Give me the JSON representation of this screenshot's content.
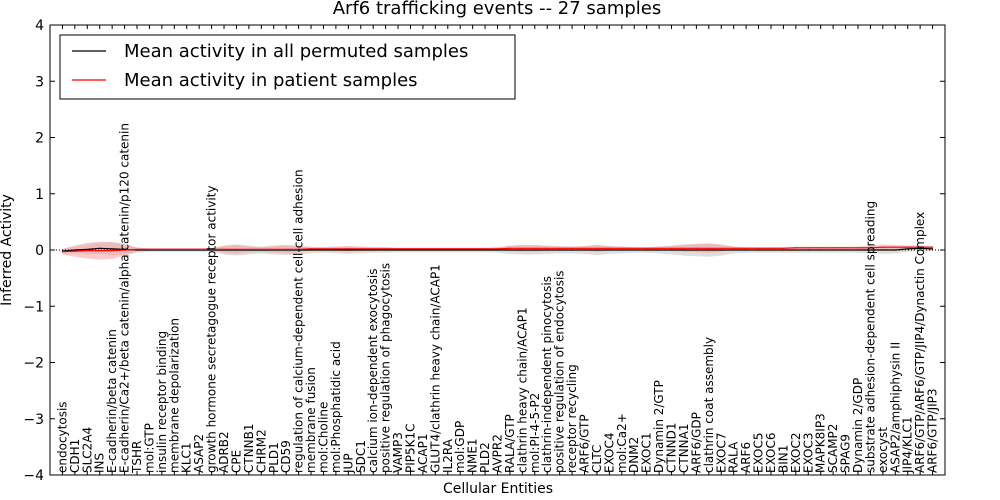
{
  "chart_data": {
    "type": "line",
    "title": "Arf6 trafficking events -- 27 samples",
    "xlabel": "Cellular Entities",
    "ylabel": "Inferred Activity",
    "ylim": [
      -4,
      4
    ],
    "yticks": [
      -4,
      -3,
      -2,
      -1,
      0,
      1,
      2,
      3,
      4
    ],
    "grid": false,
    "legend_position": "top-left",
    "categories": [
      "endocytosis",
      "CDH1",
      "SLC2A4",
      "INS",
      "E-cadherin/beta catenin",
      "E-cadherin/Ca2+/beta catenin/alpha catenin/p120 catenin",
      "TSHR",
      "mol:GTP",
      "insulin receptor binding",
      "membrane depolarization",
      "KLC1",
      "ASAP2",
      "growth hormone secretagogue receptor activity",
      "ADRB2",
      "CPE",
      "CTNNB1",
      "CHRM2",
      "PLD1",
      "CD59",
      "regulation of calcium-dependent cell-cell adhesion",
      "membrane fusion",
      "mol:Choline",
      "mol:Phosphatidic acid",
      "JUP",
      "SDC1",
      "calcium ion-dependent exocytosis",
      "positive regulation of phagocytosis",
      "VAMP3",
      "PIP5K1C",
      "ACAP1",
      "GLUT4/clathrin heavy chain/ACAP1",
      "IL2RA",
      "mol:GDP",
      "NME1",
      "PLD2",
      "AVPR2",
      "RALA/GTP",
      "clathrin heavy chain/ACAP1",
      "mol:PI-4-5-P2",
      "clathrin-independent pinocytosis",
      "positive regulation of endocytosis",
      "receptor recycling",
      "ARF6/GTP",
      "CLTC",
      "EXOC4",
      "mol:Ca2+",
      "DNM2",
      "EXOC1",
      "Dynamin 2/GTP",
      "CTNND1",
      "CTNNA1",
      "ARF6/GDP",
      "clathrin coat assembly",
      "EXOC7",
      "RALA",
      "ARF6",
      "EXOC5",
      "EXOC6",
      "BIN1",
      "EXOC2",
      "EXOC3",
      "MAPK8IP3",
      "SCAMP2",
      "SPAG9",
      "Dynamin 2/GDP",
      "substrate adhesion-dependent cell spreading",
      "exocyst",
      "ASAP2/amphiphysin II",
      "JIP4/KLC1",
      "ARF6/GTP/ARF6/GTP/JIP4/Dynactin Complex",
      "ARF6/GTP/JIP3"
    ],
    "series": [
      {
        "name": "Mean activity in all permuted samples",
        "color": "#000000",
        "band_color": "#c8c8c8",
        "values": [
          -0.02,
          0.0,
          0.01,
          0.03,
          0.02,
          0.01,
          0.0,
          0.0,
          0.0,
          0.0,
          0.0,
          0.0,
          0.0,
          0.0,
          0.0,
          0.0,
          0.0,
          0.0,
          0.0,
          0.0,
          0.0,
          0.0,
          0.0,
          0.0,
          0.0,
          0.0,
          0.0,
          0.0,
          0.0,
          0.0,
          0.0,
          0.0,
          0.0,
          0.0,
          0.0,
          0.0,
          0.0,
          0.0,
          0.0,
          0.0,
          0.0,
          0.0,
          0.0,
          0.0,
          0.0,
          0.0,
          0.0,
          0.0,
          0.0,
          0.0,
          0.0,
          0.0,
          0.0,
          0.0,
          0.0,
          0.0,
          0.0,
          0.0,
          0.0,
          0.0,
          0.0,
          0.0,
          0.0,
          0.0,
          0.0,
          0.0,
          0.0,
          0.0,
          0.02,
          0.03,
          0.02
        ],
        "band": [
          0.04,
          0.06,
          0.08,
          0.1,
          0.12,
          0.1,
          0.05,
          0.03,
          0.03,
          0.03,
          0.03,
          0.03,
          0.03,
          0.08,
          0.1,
          0.08,
          0.06,
          0.08,
          0.09,
          0.08,
          0.06,
          0.05,
          0.06,
          0.07,
          0.06,
          0.05,
          0.05,
          0.04,
          0.04,
          0.04,
          0.04,
          0.04,
          0.04,
          0.04,
          0.04,
          0.05,
          0.07,
          0.08,
          0.08,
          0.07,
          0.06,
          0.06,
          0.07,
          0.09,
          0.07,
          0.06,
          0.05,
          0.05,
          0.06,
          0.08,
          0.1,
          0.11,
          0.12,
          0.1,
          0.06,
          0.05,
          0.05,
          0.05,
          0.05,
          0.05,
          0.05,
          0.05,
          0.05,
          0.05,
          0.05,
          0.06,
          0.07,
          0.06,
          0.05,
          0.04,
          0.04
        ]
      },
      {
        "name": "Mean activity in patient samples",
        "color": "#ff0000",
        "band_color": "#f4a0a0",
        "values": [
          -0.03,
          -0.02,
          -0.01,
          -0.01,
          -0.01,
          0.0,
          0.01,
          0.01,
          0.01,
          0.01,
          0.01,
          0.01,
          0.01,
          0.01,
          0.01,
          0.01,
          0.01,
          0.01,
          0.01,
          0.01,
          0.02,
          0.02,
          0.02,
          0.02,
          0.02,
          0.02,
          0.02,
          0.02,
          0.02,
          0.02,
          0.02,
          0.02,
          0.02,
          0.02,
          0.02,
          0.02,
          0.03,
          0.03,
          0.03,
          0.03,
          0.03,
          0.03,
          0.03,
          0.03,
          0.03,
          0.03,
          0.03,
          0.03,
          0.03,
          0.03,
          0.03,
          0.03,
          0.03,
          0.03,
          0.03,
          0.03,
          0.03,
          0.03,
          0.03,
          0.04,
          0.04,
          0.04,
          0.04,
          0.04,
          0.04,
          0.04,
          0.05,
          0.05,
          0.05,
          0.05,
          0.05
        ],
        "band": [
          0.05,
          0.1,
          0.14,
          0.16,
          0.15,
          0.1,
          0.03,
          0.02,
          0.02,
          0.02,
          0.02,
          0.02,
          0.02,
          0.06,
          0.08,
          0.05,
          0.04,
          0.06,
          0.07,
          0.05,
          0.03,
          0.03,
          0.04,
          0.05,
          0.04,
          0.03,
          0.03,
          0.02,
          0.02,
          0.02,
          0.02,
          0.02,
          0.02,
          0.02,
          0.02,
          0.03,
          0.05,
          0.06,
          0.06,
          0.05,
          0.04,
          0.03,
          0.04,
          0.06,
          0.04,
          0.03,
          0.02,
          0.02,
          0.03,
          0.04,
          0.06,
          0.07,
          0.08,
          0.06,
          0.03,
          0.02,
          0.02,
          0.02,
          0.02,
          0.02,
          0.02,
          0.02,
          0.02,
          0.02,
          0.02,
          0.04,
          0.05,
          0.04,
          0.03,
          0.03,
          0.02
        ]
      }
    ]
  }
}
